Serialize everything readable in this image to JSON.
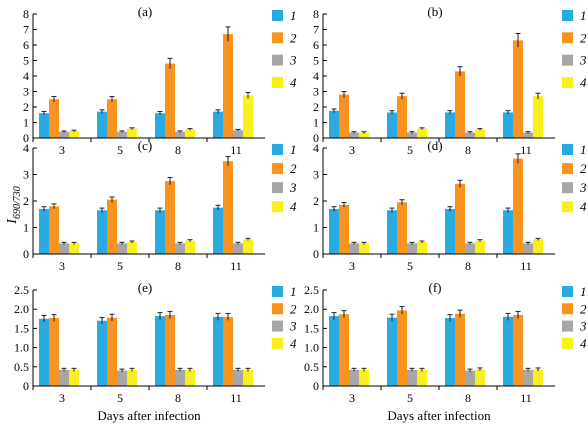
{
  "chart_data": {
    "type": "bar",
    "xlabel": "Days after infection",
    "ylabel_main": "I",
    "ylabel_sub": "690/730",
    "categories": [
      "3",
      "5",
      "8",
      "11"
    ],
    "series_names": [
      "1",
      "2",
      "3",
      "4"
    ],
    "colors": {
      "1": "#29abe2",
      "2": "#f7931e",
      "3": "#a6a6a6",
      "4": "#f7f01c"
    },
    "grid": false,
    "legend_position": "right",
    "panels": [
      {
        "label": "(a)",
        "ylim": [
          0,
          8
        ],
        "yticks": [
          "0",
          "1",
          "2",
          "3",
          "4",
          "5",
          "6",
          "7",
          "8"
        ],
        "series": [
          {
            "name": "1",
            "values": [
              1.6,
              1.7,
              1.6,
              1.7
            ]
          },
          {
            "name": "2",
            "values": [
              2.5,
              2.5,
              4.8,
              6.7
            ]
          },
          {
            "name": "3",
            "values": [
              0.4,
              0.4,
              0.4,
              0.5
            ]
          },
          {
            "name": "4",
            "values": [
              0.45,
              0.6,
              0.55,
              2.75
            ]
          }
        ]
      },
      {
        "label": "(b)",
        "ylim": [
          0,
          8
        ],
        "yticks": [
          "0",
          "1",
          "2",
          "3",
          "4",
          "5",
          "6",
          "7",
          "8"
        ],
        "series": [
          {
            "name": "1",
            "values": [
              1.75,
              1.65,
              1.65,
              1.65
            ]
          },
          {
            "name": "2",
            "values": [
              2.8,
              2.7,
              4.3,
              6.3
            ]
          },
          {
            "name": "3",
            "values": [
              0.35,
              0.35,
              0.35,
              0.35
            ]
          },
          {
            "name": "4",
            "values": [
              0.35,
              0.6,
              0.55,
              2.7
            ]
          }
        ]
      },
      {
        "label": "(c)",
        "ylim": [
          0,
          4
        ],
        "yticks": [
          "0",
          "1",
          "2",
          "3",
          "4"
        ],
        "series": [
          {
            "name": "1",
            "values": [
              1.7,
              1.65,
              1.65,
              1.75
            ]
          },
          {
            "name": "2",
            "values": [
              1.8,
              2.05,
              2.75,
              3.5
            ]
          },
          {
            "name": "3",
            "values": [
              0.4,
              0.4,
              0.4,
              0.4
            ]
          },
          {
            "name": "4",
            "values": [
              0.4,
              0.45,
              0.5,
              0.55
            ]
          }
        ]
      },
      {
        "label": "(d)",
        "ylim": [
          0,
          4
        ],
        "yticks": [
          "0",
          "1",
          "2",
          "3",
          "4"
        ],
        "series": [
          {
            "name": "1",
            "values": [
              1.7,
              1.65,
              1.7,
              1.65
            ]
          },
          {
            "name": "2",
            "values": [
              1.85,
              1.95,
              2.65,
              3.6
            ]
          },
          {
            "name": "3",
            "values": [
              0.4,
              0.4,
              0.4,
              0.4
            ]
          },
          {
            "name": "4",
            "values": [
              0.4,
              0.45,
              0.5,
              0.55
            ]
          }
        ]
      },
      {
        "label": "(e)",
        "ylim": [
          0,
          2.5
        ],
        "yticks": [
          "0",
          "0.5",
          "1.0",
          "1.5",
          "2.0",
          "2.5"
        ],
        "series": [
          {
            "name": "1",
            "values": [
              1.75,
              1.7,
              1.82,
              1.8
            ]
          },
          {
            "name": "2",
            "values": [
              1.77,
              1.78,
              1.85,
              1.8
            ]
          },
          {
            "name": "3",
            "values": [
              0.42,
              0.4,
              0.42,
              0.42
            ]
          },
          {
            "name": "4",
            "values": [
              0.42,
              0.42,
              0.42,
              0.42
            ]
          }
        ]
      },
      {
        "label": "(f)",
        "ylim": [
          0,
          2.5
        ],
        "yticks": [
          "0",
          "0.5",
          "1.0",
          "1.5",
          "2.0",
          "2.5"
        ],
        "series": [
          {
            "name": "1",
            "values": [
              1.82,
              1.78,
              1.77,
              1.8
            ]
          },
          {
            "name": "2",
            "values": [
              1.87,
              1.97,
              1.88,
              1.85
            ]
          },
          {
            "name": "3",
            "values": [
              0.42,
              0.42,
              0.4,
              0.42
            ]
          },
          {
            "name": "4",
            "values": [
              0.42,
              0.42,
              0.43,
              0.43
            ]
          }
        ]
      }
    ]
  }
}
